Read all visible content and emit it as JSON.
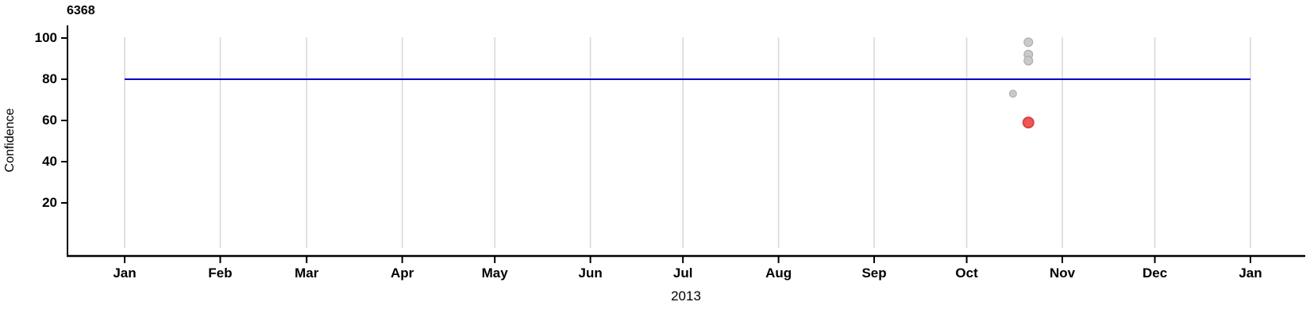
{
  "chart_data": {
    "type": "scatter",
    "title": "6368",
    "xlabel": "2013",
    "ylabel": "Confidence",
    "x_axis": {
      "unit": "month",
      "year": "2013",
      "tick_labels": [
        "Jan",
        "Feb",
        "Mar",
        "Apr",
        "May",
        "Jun",
        "Jul",
        "Aug",
        "Sep",
        "Oct",
        "Nov",
        "Dec",
        "Jan"
      ],
      "tick_day_offsets": [
        0,
        31,
        59,
        90,
        120,
        151,
        181,
        212,
        243,
        273,
        304,
        334,
        365
      ],
      "range_days": [
        0,
        365
      ]
    },
    "y_axis": {
      "tick_labels": [
        "100",
        "80",
        "60",
        "40",
        "20"
      ],
      "tick_values": [
        100,
        80,
        60,
        40,
        20
      ],
      "range": [
        0,
        105
      ]
    },
    "grid": {
      "vertical": true,
      "horizontal": false,
      "color": "#d9d9d9"
    },
    "legend": "none",
    "reference_line": {
      "y": 80,
      "color": "#0000c4",
      "span_days": [
        0,
        365
      ]
    },
    "points": [
      {
        "date": "2013-10-21",
        "day": 293,
        "value": 98,
        "series": "other",
        "size": "normal",
        "fill": "#c9c9c9",
        "stroke": "#aaaaaa"
      },
      {
        "date": "2013-10-21",
        "day": 293,
        "value": 92,
        "series": "other",
        "size": "normal",
        "fill": "#c9c9c9",
        "stroke": "#aaaaaa"
      },
      {
        "date": "2013-10-21",
        "day": 293,
        "value": 89,
        "series": "other",
        "size": "normal",
        "fill": "#c9c9c9",
        "stroke": "#aaaaaa"
      },
      {
        "date": "2013-10-16",
        "day": 288,
        "value": 73,
        "series": "other",
        "size": "small",
        "fill": "#c9c9c9",
        "stroke": "#aaaaaa"
      },
      {
        "date": "2013-10-21",
        "day": 293,
        "value": 59,
        "series": "highlighted",
        "size": "large",
        "fill": "#ee5755",
        "stroke": "#dc4040"
      }
    ],
    "colors": {
      "axis": "#000000",
      "tick_text": "#000000",
      "gridline": "#d9d9d9",
      "threshold": "#0000c4",
      "point_other": "#c9c9c9",
      "point_highlighted": "#ee5755"
    }
  }
}
